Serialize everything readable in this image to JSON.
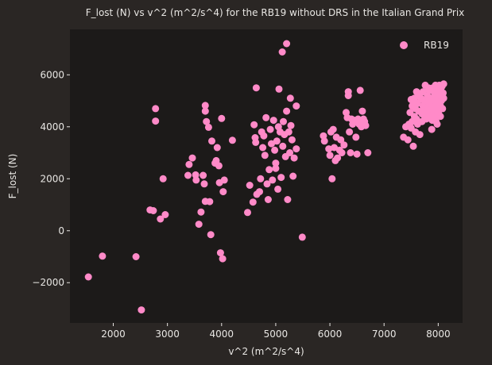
{
  "chart_data": {
    "type": "scatter",
    "title": "F_lost (N) vs v^2 (m^2/s^4) for the RB19 without DRS in the Italian Grand Prix",
    "xlabel": "v^2 (m^2/s^4)",
    "ylabel": "F_lost (N)",
    "xlim": [
      1200,
      8450
    ],
    "ylim": [
      -3550,
      7750
    ],
    "xticks": [
      2000,
      3000,
      4000,
      5000,
      6000,
      7000,
      8000
    ],
    "yticks": [
      -2000,
      0,
      2000,
      4000,
      6000
    ],
    "xtick_labels": [
      "2000",
      "3000",
      "4000",
      "5000",
      "6000",
      "7000",
      "8000"
    ],
    "ytick_labels": [
      "−2000",
      "0",
      "2000",
      "4000",
      "6000"
    ],
    "grid": false,
    "legend_position": "top-right",
    "colors": {
      "background": "#2a2624",
      "plot_area": "#1c1a19",
      "marker": "#ff8ac8",
      "text": "#e8e6e3"
    },
    "series": [
      {
        "name": "RB19",
        "points": [
          [
            1540,
            -1780
          ],
          [
            1800,
            -980
          ],
          [
            2420,
            -1000
          ],
          [
            2520,
            -3050
          ],
          [
            2680,
            800
          ],
          [
            2740,
            770
          ],
          [
            2870,
            450
          ],
          [
            2960,
            620
          ],
          [
            2920,
            2000
          ],
          [
            2780,
            4700
          ],
          [
            2780,
            4220
          ],
          [
            3380,
            2130
          ],
          [
            3400,
            2550
          ],
          [
            3460,
            2800
          ],
          [
            3520,
            2150
          ],
          [
            3530,
            1950
          ],
          [
            3580,
            250
          ],
          [
            3620,
            720
          ],
          [
            3660,
            2130
          ],
          [
            3680,
            1800
          ],
          [
            3700,
            1130
          ],
          [
            3700,
            4820
          ],
          [
            3700,
            4600
          ],
          [
            3720,
            4200
          ],
          [
            3760,
            3980
          ],
          [
            3780,
            1120
          ],
          [
            3800,
            -150
          ],
          [
            3820,
            3450
          ],
          [
            3880,
            2600
          ],
          [
            3900,
            2700
          ],
          [
            3920,
            3200
          ],
          [
            3950,
            2500
          ],
          [
            3960,
            1850
          ],
          [
            3980,
            -850
          ],
          [
            4000,
            4320
          ],
          [
            4020,
            -1080
          ],
          [
            4030,
            1500
          ],
          [
            4050,
            1950
          ],
          [
            4200,
            3480
          ],
          [
            4480,
            700
          ],
          [
            4520,
            1750
          ],
          [
            4580,
            1100
          ],
          [
            4600,
            4080
          ],
          [
            4620,
            3580
          ],
          [
            4630,
            3400
          ],
          [
            4640,
            5500
          ],
          [
            4650,
            1400
          ],
          [
            4700,
            1500
          ],
          [
            4720,
            2000
          ],
          [
            4740,
            3800
          ],
          [
            4760,
            3200
          ],
          [
            4780,
            3650
          ],
          [
            4800,
            2900
          ],
          [
            4820,
            4350
          ],
          [
            4840,
            1800
          ],
          [
            4860,
            1200
          ],
          [
            4880,
            2350
          ],
          [
            4900,
            3900
          ],
          [
            4920,
            3350
          ],
          [
            4940,
            1950
          ],
          [
            4960,
            4250
          ],
          [
            4980,
            3100
          ],
          [
            5000,
            2400
          ],
          [
            5000,
            2600
          ],
          [
            5020,
            3450
          ],
          [
            5040,
            1600
          ],
          [
            5050,
            4000
          ],
          [
            5060,
            5450
          ],
          [
            5080,
            3800
          ],
          [
            5100,
            2050
          ],
          [
            5120,
            6880
          ],
          [
            5130,
            3250
          ],
          [
            5140,
            4200
          ],
          [
            5160,
            3700
          ],
          [
            5180,
            2850
          ],
          [
            5200,
            4600
          ],
          [
            5200,
            7200
          ],
          [
            5220,
            1200
          ],
          [
            5240,
            3800
          ],
          [
            5260,
            3000
          ],
          [
            5270,
            5100
          ],
          [
            5280,
            4050
          ],
          [
            5300,
            3500
          ],
          [
            5320,
            2100
          ],
          [
            5340,
            2800
          ],
          [
            5380,
            4800
          ],
          [
            5380,
            3150
          ],
          [
            5490,
            -250
          ],
          [
            5880,
            3650
          ],
          [
            5900,
            3450
          ],
          [
            5980,
            3150
          ],
          [
            6000,
            2900
          ],
          [
            6020,
            3800
          ],
          [
            6040,
            2000
          ],
          [
            6060,
            3900
          ],
          [
            6080,
            3200
          ],
          [
            6100,
            2700
          ],
          [
            6120,
            3600
          ],
          [
            6140,
            2800
          ],
          [
            6180,
            3100
          ],
          [
            6200,
            3500
          ],
          [
            6220,
            3000
          ],
          [
            6260,
            3300
          ],
          [
            6300,
            4550
          ],
          [
            6320,
            4350
          ],
          [
            6340,
            5350
          ],
          [
            6340,
            5200
          ],
          [
            6360,
            3800
          ],
          [
            6380,
            3000
          ],
          [
            6400,
            4300
          ],
          [
            6420,
            4100
          ],
          [
            6460,
            4250
          ],
          [
            6480,
            3600
          ],
          [
            6500,
            2950
          ],
          [
            6520,
            4300
          ],
          [
            6540,
            4100
          ],
          [
            6560,
            5400
          ],
          [
            6580,
            4000
          ],
          [
            6600,
            4600
          ],
          [
            6620,
            4300
          ],
          [
            6640,
            4200
          ],
          [
            6660,
            4050
          ],
          [
            6700,
            3000
          ],
          [
            7360,
            3600
          ],
          [
            7400,
            4000
          ],
          [
            7440,
            3500
          ],
          [
            7460,
            4100
          ],
          [
            7480,
            4550
          ],
          [
            7500,
            5050
          ],
          [
            7500,
            3950
          ],
          [
            7520,
            4200
          ],
          [
            7540,
            3250
          ],
          [
            7560,
            4400
          ],
          [
            7580,
            4700
          ],
          [
            7580,
            3800
          ],
          [
            7600,
            4300
          ],
          [
            7620,
            4900
          ],
          [
            7620,
            4100
          ],
          [
            7640,
            4600
          ],
          [
            7660,
            3700
          ],
          [
            7680,
            5100
          ],
          [
            7700,
            4500
          ],
          [
            7700,
            4200
          ],
          [
            7720,
            4800
          ],
          [
            7720,
            5350
          ],
          [
            7740,
            4700
          ],
          [
            7750,
            4400
          ],
          [
            7760,
            5000
          ],
          [
            7780,
            4600
          ],
          [
            7780,
            4300
          ],
          [
            7800,
            5200
          ],
          [
            7800,
            4800
          ],
          [
            7820,
            4500
          ],
          [
            7830,
            4900
          ],
          [
            7840,
            5400
          ],
          [
            7850,
            4650
          ],
          [
            7860,
            4400
          ],
          [
            7870,
            5100
          ],
          [
            7880,
            4850
          ],
          [
            7890,
            4250
          ],
          [
            7900,
            5500
          ],
          [
            7900,
            4700
          ],
          [
            7910,
            5000
          ],
          [
            7920,
            4550
          ],
          [
            7930,
            5300
          ],
          [
            7940,
            4800
          ],
          [
            7950,
            5600
          ],
          [
            7950,
            4400
          ],
          [
            7960,
            5150
          ],
          [
            7970,
            4900
          ],
          [
            7980,
            5450
          ],
          [
            7990,
            4650
          ],
          [
            8000,
            5300
          ],
          [
            8000,
            5000
          ],
          [
            8010,
            4500
          ],
          [
            8020,
            5600
          ],
          [
            8030,
            5200
          ],
          [
            8040,
            4800
          ],
          [
            8050,
            5400
          ],
          [
            8060,
            5000
          ],
          [
            8070,
            5550
          ],
          [
            8080,
            4700
          ],
          [
            8090,
            5300
          ],
          [
            8100,
            5100
          ],
          [
            8100,
            5650
          ],
          [
            8040,
            4400
          ],
          [
            7960,
            4200
          ],
          [
            7880,
            3900
          ],
          [
            7820,
            5500
          ],
          [
            7760,
            5600
          ],
          [
            7700,
            5050
          ],
          [
            7650,
            5200
          ],
          [
            7600,
            5350
          ],
          [
            7560,
            5100
          ],
          [
            7520,
            4800
          ],
          [
            7540,
            4900
          ],
          [
            7980,
            4100
          ]
        ]
      }
    ]
  }
}
